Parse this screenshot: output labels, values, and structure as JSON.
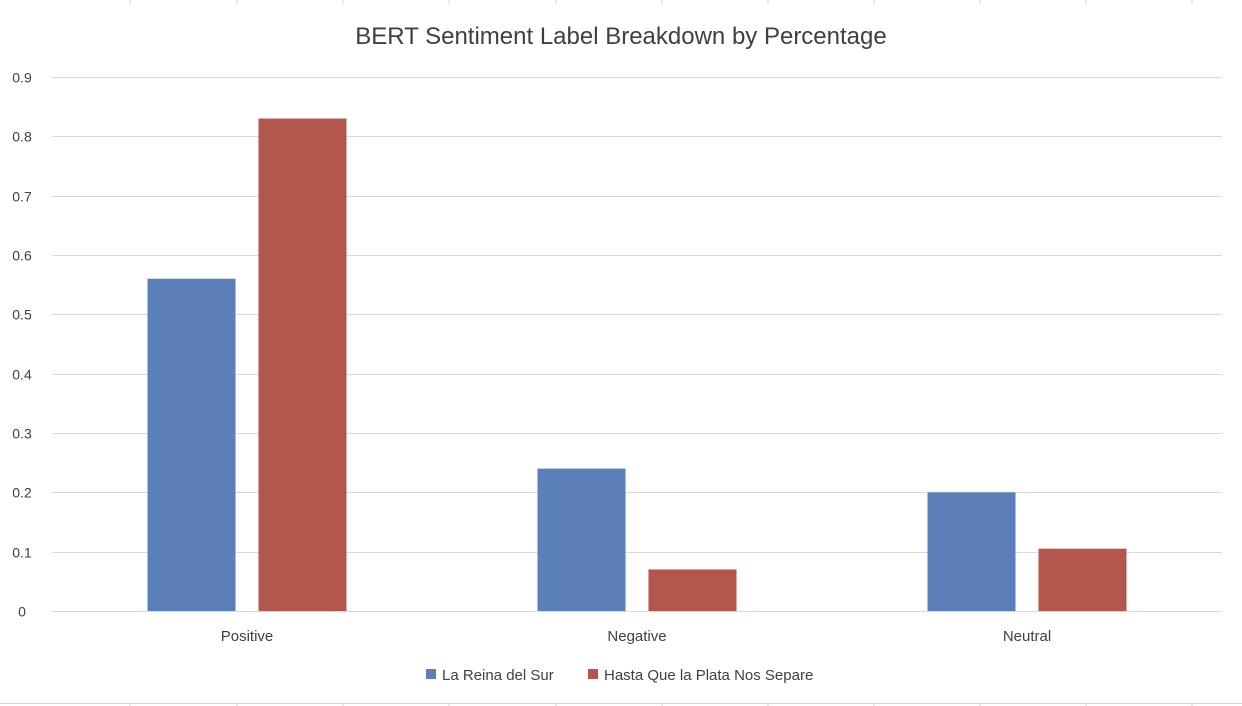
{
  "chart_data": {
    "type": "bar",
    "title": "BERT Sentiment Label Breakdown by Percentage",
    "categories": [
      "Positive",
      "Negative",
      "Neutral"
    ],
    "series": [
      {
        "name": "La Reina del Sur",
        "color": "#5B7FB8",
        "values": [
          0.56,
          0.24,
          0.2
        ]
      },
      {
        "name": "Hasta Que la Plata Nos Separe",
        "color": "#B3574D",
        "values": [
          0.83,
          0.07,
          0.105
        ]
      }
    ],
    "ylim": [
      0,
      0.9
    ],
    "yticks": [
      "0",
      "0.1",
      "0.2",
      "0.3",
      "0.4",
      "0.5",
      "0.6",
      "0.7",
      "0.8",
      "0.9"
    ],
    "grid": true,
    "legend": "bottom"
  }
}
